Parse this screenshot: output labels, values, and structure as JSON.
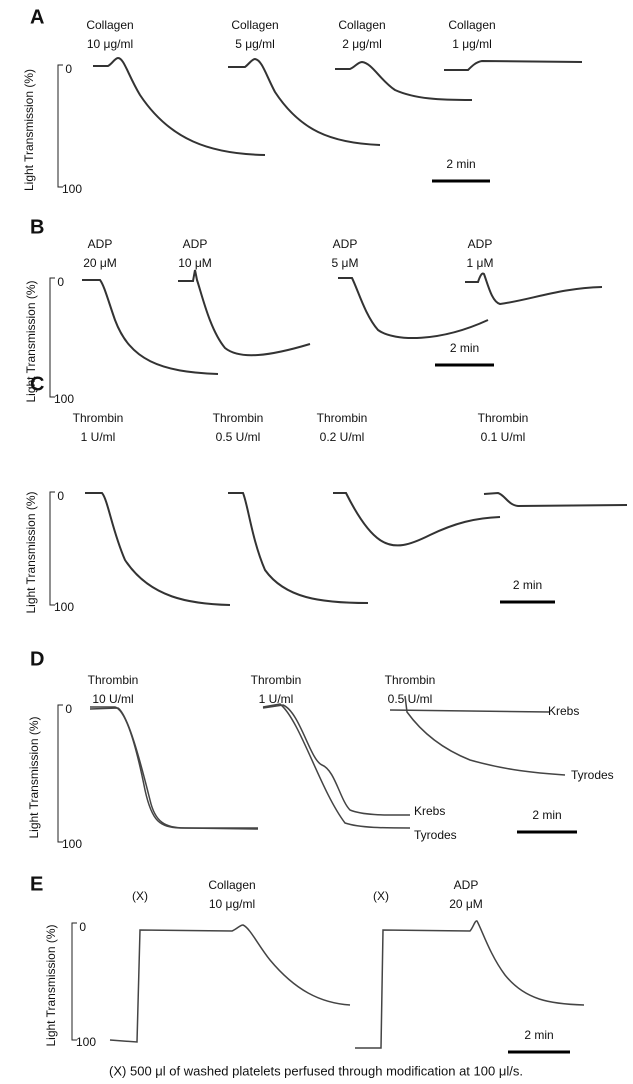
{
  "panels": [
    {
      "label": "A",
      "axis_label": "Light Transmission (%)",
      "ticks": [
        0,
        100
      ],
      "annotations": [
        [
          "Collagen",
          "10 μg/ml"
        ],
        [
          "Collagen",
          "5 μg/ml"
        ],
        [
          "Collagen",
          "2 μg/ml"
        ],
        [
          "Collagen",
          "1 μg/ml"
        ]
      ],
      "scale_bar": "2 min",
      "trace_labels": []
    },
    {
      "label": "B",
      "axis_label": "Light Transmission (%)",
      "ticks": [
        0,
        100
      ],
      "annotations": [
        [
          "ADP",
          "20 μM"
        ],
        [
          "ADP",
          "10 μM"
        ],
        [
          "ADP",
          "5 μM"
        ],
        [
          "ADP",
          "1 μM"
        ]
      ],
      "scale_bar": "2 min",
      "trace_labels": []
    },
    {
      "label": "C",
      "axis_label": "Light Transmission (%)",
      "ticks": [
        0,
        100
      ],
      "annotations": [
        [
          "Thrombin",
          "1 U/ml"
        ],
        [
          "Thrombin",
          "0.5 U/ml"
        ],
        [
          "Thrombin",
          "0.2 U/ml"
        ],
        [
          "Thrombin",
          "0.1 U/ml"
        ]
      ],
      "scale_bar": "2 min",
      "trace_labels": []
    },
    {
      "label": "D",
      "axis_label": "Light Transmission (%)",
      "ticks": [
        0,
        100
      ],
      "annotations": [
        [
          "Thrombin",
          "10 U/ml"
        ],
        [
          "Thrombin",
          "1 U/ml"
        ],
        [
          "Thrombin",
          "0.5 U/ml"
        ]
      ],
      "scale_bar": "2 min",
      "trace_labels": [
        "Krebs",
        "Tyrodes",
        "Krebs",
        "Tyrodes"
      ]
    },
    {
      "label": "E",
      "axis_label": "Light Transmission (%)",
      "ticks": [
        0,
        100
      ],
      "annotations": [
        [
          "(X)"
        ],
        [
          "Collagen",
          "10 μg/ml"
        ],
        [
          "(X)"
        ],
        [
          "ADP",
          "20 μM"
        ]
      ],
      "scale_bar": "2 min",
      "trace_labels": []
    }
  ],
  "caption": "(X) 500 μl of washed platelets perfused through modification at 100 μl/s."
}
